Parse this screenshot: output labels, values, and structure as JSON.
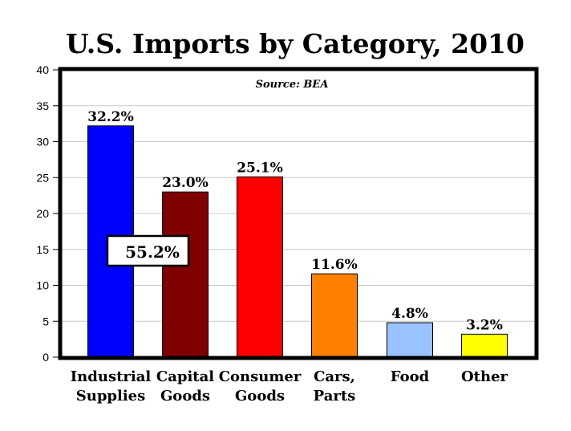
{
  "chart_data": {
    "type": "bar",
    "title": "U.S. Imports by Category, 2010",
    "annotation": "Source: BEA",
    "callout": "55.2%",
    "categories": [
      [
        "Industrial",
        "Supplies"
      ],
      [
        "Capital",
        "Goods"
      ],
      [
        "Consumer",
        "Goods"
      ],
      [
        "Cars,",
        "Parts"
      ],
      [
        "Food"
      ],
      [
        "Other"
      ]
    ],
    "values": [
      32.2,
      23.0,
      25.1,
      11.6,
      4.8,
      3.2
    ],
    "data_labels": [
      "32.2%",
      "23.0%",
      "25.1%",
      "11.6%",
      "4.8%",
      "3.2%"
    ],
    "colors": [
      "#0000ff",
      "#800000",
      "#ff0000",
      "#ff8000",
      "#99c2ff",
      "#ffff00"
    ],
    "ylim": [
      0,
      40
    ],
    "yticks": [
      "0",
      "5",
      "10",
      "15",
      "20",
      "25",
      "30",
      "35",
      "40"
    ],
    "grid": true,
    "xlabel": "",
    "ylabel": ""
  }
}
